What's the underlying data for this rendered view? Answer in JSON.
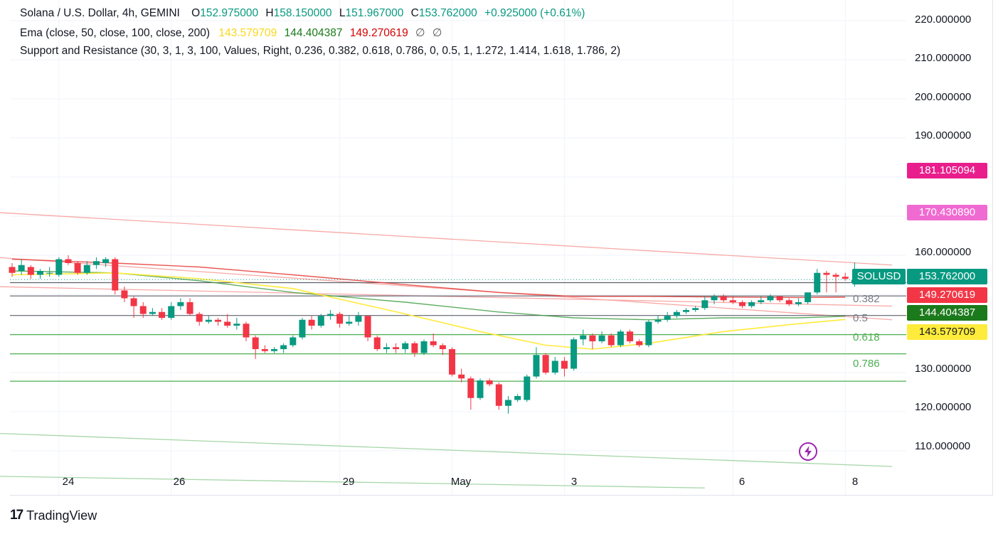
{
  "legend": {
    "line1": {
      "symbol": "Solana / U.S. Dollar, 4h, GEMINI",
      "o_label": "O",
      "o": "152.975000",
      "h_label": "H",
      "h": "158.150000",
      "l_label": "L",
      "l": "151.967000",
      "c_label": "C",
      "c": "153.762000",
      "change": "+0.925000 (+0.61%)"
    },
    "line2": {
      "name": "Ema (close, 50, close, 100, close, 200)",
      "v50": "143.579709",
      "v100": "144.404387",
      "v200": "149.270619",
      "na1": "∅",
      "na2": "∅"
    },
    "line3": "Support and Resistance (30, 3, 1, 3, 100, Values, Right, 0.236, 0.382, 0.618, 0.786, 0, 0.5, 1, 1.272, 1.414, 1.618, 1.786, 2)"
  },
  "price_tags": {
    "symbol": "SOLUSD",
    "last": "153.762000",
    "ema200": "149.270619",
    "ema100": "144.404387",
    "ema50": "143.579709",
    "upper1": "181.105094",
    "upper2": "170.430890"
  },
  "fib_labels": [
    "0.382",
    "0.5",
    "0.618",
    "0.786"
  ],
  "footer": {
    "brand": "TradingView",
    "mark": "17"
  },
  "colors": {
    "up": "#089981",
    "down": "#f23645",
    "ema50": "#ffeb3b",
    "ema100": "#43a047",
    "ema200": "#e53935",
    "fib_gray": "#787b86",
    "fib_green": "#4caf50",
    "channel_red": "#f7a9a7",
    "channel_green": "#a5d6a7",
    "tag_pink": "#e91e8c",
    "tag_pink_light": "#f06bd1"
  },
  "chart_data": {
    "type": "candlestick",
    "symbol": "SOLUSD",
    "timeframe": "4h",
    "ylim": [
      104,
      224
    ],
    "y_ticks": [
      "220.000000",
      "210.000000",
      "200.000000",
      "190.000000",
      "160.000000",
      "130.000000",
      "120.000000",
      "110.000000"
    ],
    "x_ticks": [
      {
        "label": "24",
        "index": 5
      },
      {
        "label": "26",
        "index": 17
      },
      {
        "label": "29",
        "index": 35
      },
      {
        "label": "May",
        "index": 47
      },
      {
        "label": "3",
        "index": 59
      },
      {
        "label": "6",
        "index": 77
      },
      {
        "label": "8",
        "index": 89
      }
    ],
    "candles": [
      [
        157.0,
        158.0,
        154.5,
        155.5
      ],
      [
        156.0,
        159.0,
        155.0,
        157.5
      ],
      [
        157.0,
        157.5,
        154.0,
        155.0
      ],
      [
        155.0,
        156.5,
        154.0,
        156.0
      ],
      [
        155.5,
        157.0,
        154.5,
        155.5
      ],
      [
        155.0,
        159.5,
        154.5,
        159.0
      ],
      [
        159.0,
        160.0,
        157.5,
        158.0
      ],
      [
        158.0,
        158.5,
        155.0,
        155.5
      ],
      [
        155.5,
        158.5,
        155.0,
        157.5
      ],
      [
        157.5,
        159.5,
        156.5,
        158.5
      ],
      [
        158.0,
        159.5,
        157.0,
        159.0
      ],
      [
        159.0,
        159.5,
        150.0,
        151.0
      ],
      [
        151.0,
        152.0,
        148.0,
        149.0
      ],
      [
        149.0,
        149.5,
        144.0,
        147.0
      ],
      [
        147.0,
        148.0,
        144.0,
        145.0
      ],
      [
        145.0,
        146.5,
        144.5,
        145.5
      ],
      [
        145.5,
        146.5,
        143.5,
        144.0
      ],
      [
        144.0,
        148.0,
        143.5,
        147.0
      ],
      [
        147.0,
        149.0,
        146.0,
        148.0
      ],
      [
        148.0,
        149.0,
        144.5,
        145.0
      ],
      [
        145.0,
        145.5,
        142.0,
        143.0
      ],
      [
        143.0,
        144.5,
        142.5,
        143.5
      ],
      [
        143.5,
        144.0,
        142.0,
        143.0
      ],
      [
        143.0,
        145.0,
        141.5,
        142.0
      ],
      [
        142.0,
        144.0,
        141.0,
        142.5
      ],
      [
        142.5,
        143.0,
        138.0,
        139.0
      ],
      [
        139.0,
        139.5,
        133.5,
        136.0
      ],
      [
        136.0,
        137.0,
        135.0,
        135.5
      ],
      [
        135.5,
        136.5,
        135.0,
        136.0
      ],
      [
        136.0,
        137.5,
        135.0,
        137.0
      ],
      [
        137.0,
        139.5,
        136.5,
        139.0
      ],
      [
        139.0,
        144.0,
        138.5,
        143.5
      ],
      [
        143.5,
        144.5,
        141.0,
        142.0
      ],
      [
        142.0,
        145.0,
        141.5,
        144.5
      ],
      [
        144.5,
        146.0,
        143.5,
        145.0
      ],
      [
        145.0,
        145.5,
        141.5,
        142.5
      ],
      [
        142.5,
        144.5,
        142.0,
        143.0
      ],
      [
        143.0,
        145.5,
        142.0,
        144.5
      ],
      [
        144.5,
        144.5,
        138.0,
        139.0
      ],
      [
        139.0,
        139.5,
        135.5,
        136.0
      ],
      [
        136.0,
        137.5,
        135.0,
        136.5
      ],
      [
        136.5,
        137.5,
        135.0,
        136.0
      ],
      [
        136.0,
        138.0,
        135.0,
        137.5
      ],
      [
        137.5,
        138.0,
        134.0,
        135.0
      ],
      [
        135.0,
        138.5,
        134.5,
        138.0
      ],
      [
        138.0,
        140.0,
        136.5,
        137.0
      ],
      [
        137.0,
        137.5,
        134.5,
        136.0
      ],
      [
        136.0,
        136.5,
        129.0,
        129.5
      ],
      [
        129.5,
        131.0,
        127.5,
        128.5
      ],
      [
        128.5,
        129.0,
        120.5,
        123.5
      ],
      [
        123.5,
        128.5,
        123.0,
        128.0
      ],
      [
        128.0,
        128.5,
        126.5,
        127.0
      ],
      [
        127.0,
        127.5,
        120.5,
        121.5
      ],
      [
        121.5,
        124.0,
        119.5,
        123.0
      ],
      [
        123.0,
        124.5,
        122.5,
        124.0
      ],
      [
        123.0,
        129.5,
        122.5,
        129.0
      ],
      [
        129.0,
        136.5,
        128.5,
        134.5
      ],
      [
        134.5,
        135.0,
        129.5,
        130.0
      ],
      [
        130.0,
        134.0,
        129.5,
        133.0
      ],
      [
        133.0,
        134.0,
        129.0,
        131.0
      ],
      [
        131.0,
        139.0,
        130.5,
        138.5
      ],
      [
        138.5,
        141.0,
        137.0,
        139.5
      ],
      [
        139.5,
        140.0,
        136.0,
        138.0
      ],
      [
        138.0,
        140.5,
        137.5,
        139.5
      ],
      [
        139.5,
        140.0,
        136.5,
        137.0
      ],
      [
        137.0,
        141.0,
        136.5,
        140.5
      ],
      [
        140.5,
        141.0,
        137.5,
        138.0
      ],
      [
        138.0,
        138.5,
        136.5,
        137.0
      ],
      [
        137.0,
        143.5,
        136.5,
        143.0
      ],
      [
        143.0,
        144.5,
        142.5,
        143.5
      ],
      [
        143.5,
        145.5,
        143.0,
        144.5
      ],
      [
        144.5,
        146.0,
        144.0,
        145.5
      ],
      [
        145.5,
        146.5,
        145.0,
        146.0
      ],
      [
        146.0,
        147.0,
        145.5,
        146.5
      ],
      [
        146.5,
        149.5,
        146.0,
        148.5
      ],
      [
        148.5,
        150.0,
        147.5,
        149.5
      ],
      [
        149.5,
        150.0,
        148.0,
        148.5
      ],
      [
        148.5,
        149.5,
        147.5,
        148.0
      ],
      [
        148.0,
        148.5,
        146.5,
        147.0
      ],
      [
        147.0,
        148.5,
        146.5,
        148.0
      ],
      [
        148.0,
        149.5,
        147.5,
        148.5
      ],
      [
        148.5,
        150.0,
        148.0,
        149.5
      ],
      [
        149.5,
        149.5,
        148.0,
        148.5
      ],
      [
        148.5,
        149.0,
        147.0,
        147.5
      ],
      [
        147.5,
        149.0,
        147.0,
        148.0
      ],
      [
        148.0,
        150.5,
        147.5,
        150.5
      ],
      [
        150.5,
        156.5,
        150.0,
        155.5
      ],
      [
        155.5,
        156.0,
        150.5,
        155.0
      ],
      [
        155.0,
        155.5,
        150.5,
        154.5
      ],
      [
        154.5,
        155.5,
        153.5,
        154.0
      ],
      [
        152.975,
        158.15,
        151.967,
        153.762
      ]
    ],
    "ema50": [
      [
        0,
        155.0
      ],
      [
        11,
        155.5
      ],
      [
        20,
        154.0
      ],
      [
        30,
        151.5
      ],
      [
        42,
        145.0
      ],
      [
        50,
        140.5
      ],
      [
        57,
        137.0
      ],
      [
        62,
        136.0
      ],
      [
        68,
        137.5
      ],
      [
        76,
        140.5
      ],
      [
        84,
        142.5
      ],
      [
        89,
        143.58
      ]
    ],
    "ema100": [
      [
        0,
        156.0
      ],
      [
        11,
        155.5
      ],
      [
        20,
        153.5
      ],
      [
        30,
        150.5
      ],
      [
        42,
        148.0
      ],
      [
        52,
        145.5
      ],
      [
        60,
        144.0
      ],
      [
        68,
        143.5
      ],
      [
        76,
        144.0
      ],
      [
        84,
        144.0
      ],
      [
        89,
        144.4
      ]
    ],
    "ema200": [
      [
        0,
        159.0
      ],
      [
        11,
        158.0
      ],
      [
        20,
        157.0
      ],
      [
        30,
        155.0
      ],
      [
        42,
        152.5
      ],
      [
        52,
        150.5
      ],
      [
        60,
        149.5
      ],
      [
        68,
        149.5
      ],
      [
        76,
        149.3
      ],
      [
        84,
        149.2
      ],
      [
        89,
        149.27
      ]
    ],
    "support_resistance": {
      "levels": [
        {
          "label": "",
          "value": 153.0
        },
        {
          "label": "0.382",
          "value": 149.6
        },
        {
          "label": "0.5",
          "value": 144.6
        },
        {
          "label": "0.618",
          "value": 139.7
        },
        {
          "label": "",
          "value": 134.8
        },
        {
          "label": "0.786",
          "value": 127.8
        }
      ],
      "channel_lines": [
        {
          "color": "red",
          "from": [
            -2,
            171.0
          ],
          "to": [
            94,
            157.5
          ]
        },
        {
          "color": "red",
          "from": [
            -2,
            159.5
          ],
          "to": [
            94,
            143.5
          ]
        },
        {
          "color": "red",
          "from": [
            -2,
            152.0
          ],
          "to": [
            94,
            147.0
          ]
        },
        {
          "color": "green",
          "from": [
            -2,
            114.5
          ],
          "to": [
            94,
            106.0
          ]
        },
        {
          "color": "green",
          "from": [
            -2,
            103.5
          ],
          "to": [
            74,
            100.5
          ]
        }
      ]
    }
  }
}
